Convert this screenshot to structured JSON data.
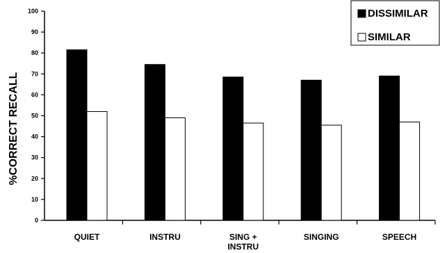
{
  "chart_data": {
    "type": "bar",
    "ylabel": "%CORRECT RECALL",
    "xlabel": "",
    "ylim": [
      0,
      100
    ],
    "yticks": [
      "0",
      "10",
      "20",
      "30",
      "40",
      "50",
      "60",
      "70",
      "80",
      "90",
      "100"
    ],
    "categories": [
      [
        "QUIET"
      ],
      [
        "INSTRU"
      ],
      [
        "SING +",
        "INSTRU"
      ],
      [
        "SINGING"
      ],
      [
        "SPEECH"
      ]
    ],
    "series": [
      {
        "name": "DISSIMILAR",
        "color": "#000000",
        "values": [
          81.5,
          74.5,
          68.5,
          67,
          69
        ]
      },
      {
        "name": "SIMILAR",
        "color": "#ffffff",
        "values": [
          52,
          49,
          46.5,
          45.5,
          47
        ]
      }
    ],
    "legend_position": "top-right",
    "grid": false
  }
}
